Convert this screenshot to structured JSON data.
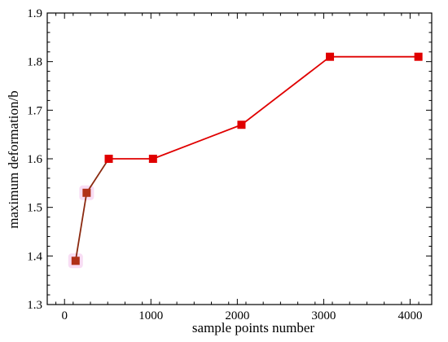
{
  "chart_data": {
    "type": "line",
    "title": "",
    "xlabel": "sample points number",
    "ylabel": "maximum deformation/b",
    "xlim": [
      -200,
      4250
    ],
    "ylim": [
      1.3,
      1.9
    ],
    "x_ticks": [
      0,
      1000,
      2000,
      3000,
      4000
    ],
    "x_tick_labels": [
      "0",
      "1000",
      "2000",
      "3000",
      "4000"
    ],
    "y_ticks": [
      1.3,
      1.4,
      1.5,
      1.6,
      1.7,
      1.8,
      1.9
    ],
    "y_tick_labels": [
      "1.3",
      "1.4",
      "1.5",
      "1.6",
      "1.7",
      "1.8",
      "1.9"
    ],
    "grid": false,
    "legend": "none",
    "series": [
      {
        "x": [
          128,
          256,
          512,
          1024,
          2048,
          3072,
          4096
        ],
        "y": [
          1.39,
          1.53,
          1.6,
          1.6,
          1.67,
          1.81,
          1.81
        ],
        "line_color": "#e00000",
        "early_segment_color": "#8b2a10",
        "marker": "square",
        "marker_color": "#e00000",
        "highlight_points_color": "#b03018",
        "highlight_glow_color": "#f3c6ec"
      }
    ]
  }
}
